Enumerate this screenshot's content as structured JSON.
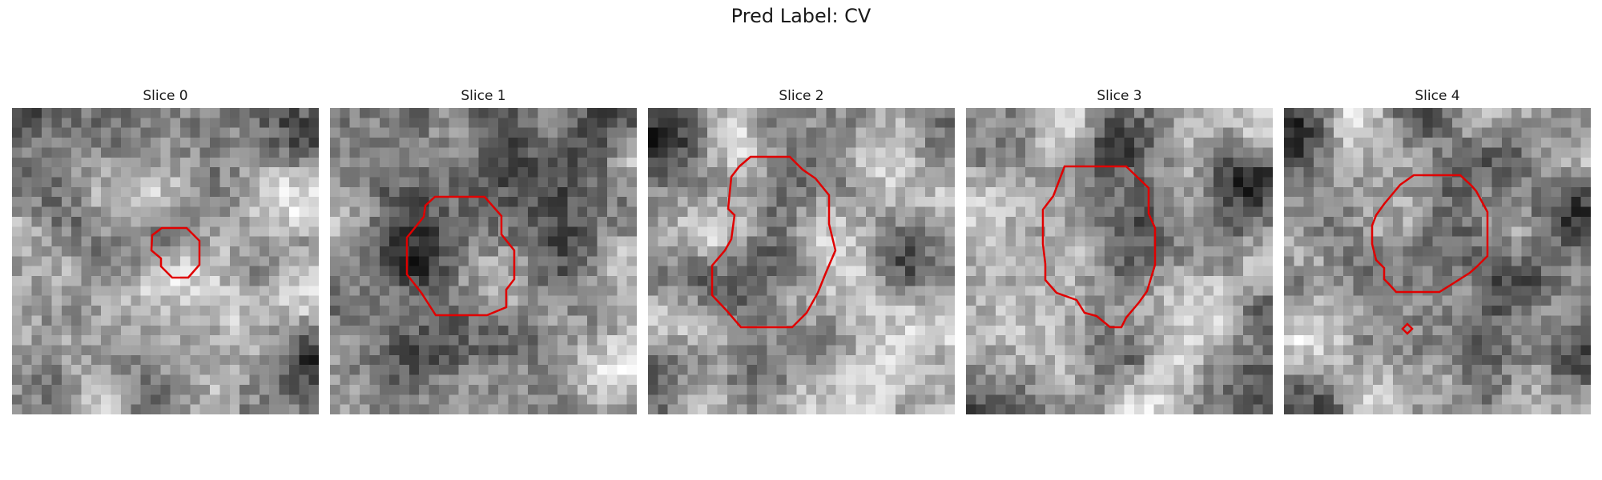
{
  "figure": {
    "title": "Pred Label: CV"
  },
  "panels": [
    {
      "title": "Slice 0",
      "seed": 11
    },
    {
      "title": "Slice 1",
      "seed": 23
    },
    {
      "title": "Slice 2",
      "seed": 37
    },
    {
      "title": "Slice 3",
      "seed": 41
    },
    {
      "title": "Slice 4",
      "seed": 59
    }
  ],
  "colors": {
    "contour": "#e00000",
    "background": "#ffffff"
  },
  "image": {
    "grid": 31,
    "colormap": "grayscale"
  }
}
